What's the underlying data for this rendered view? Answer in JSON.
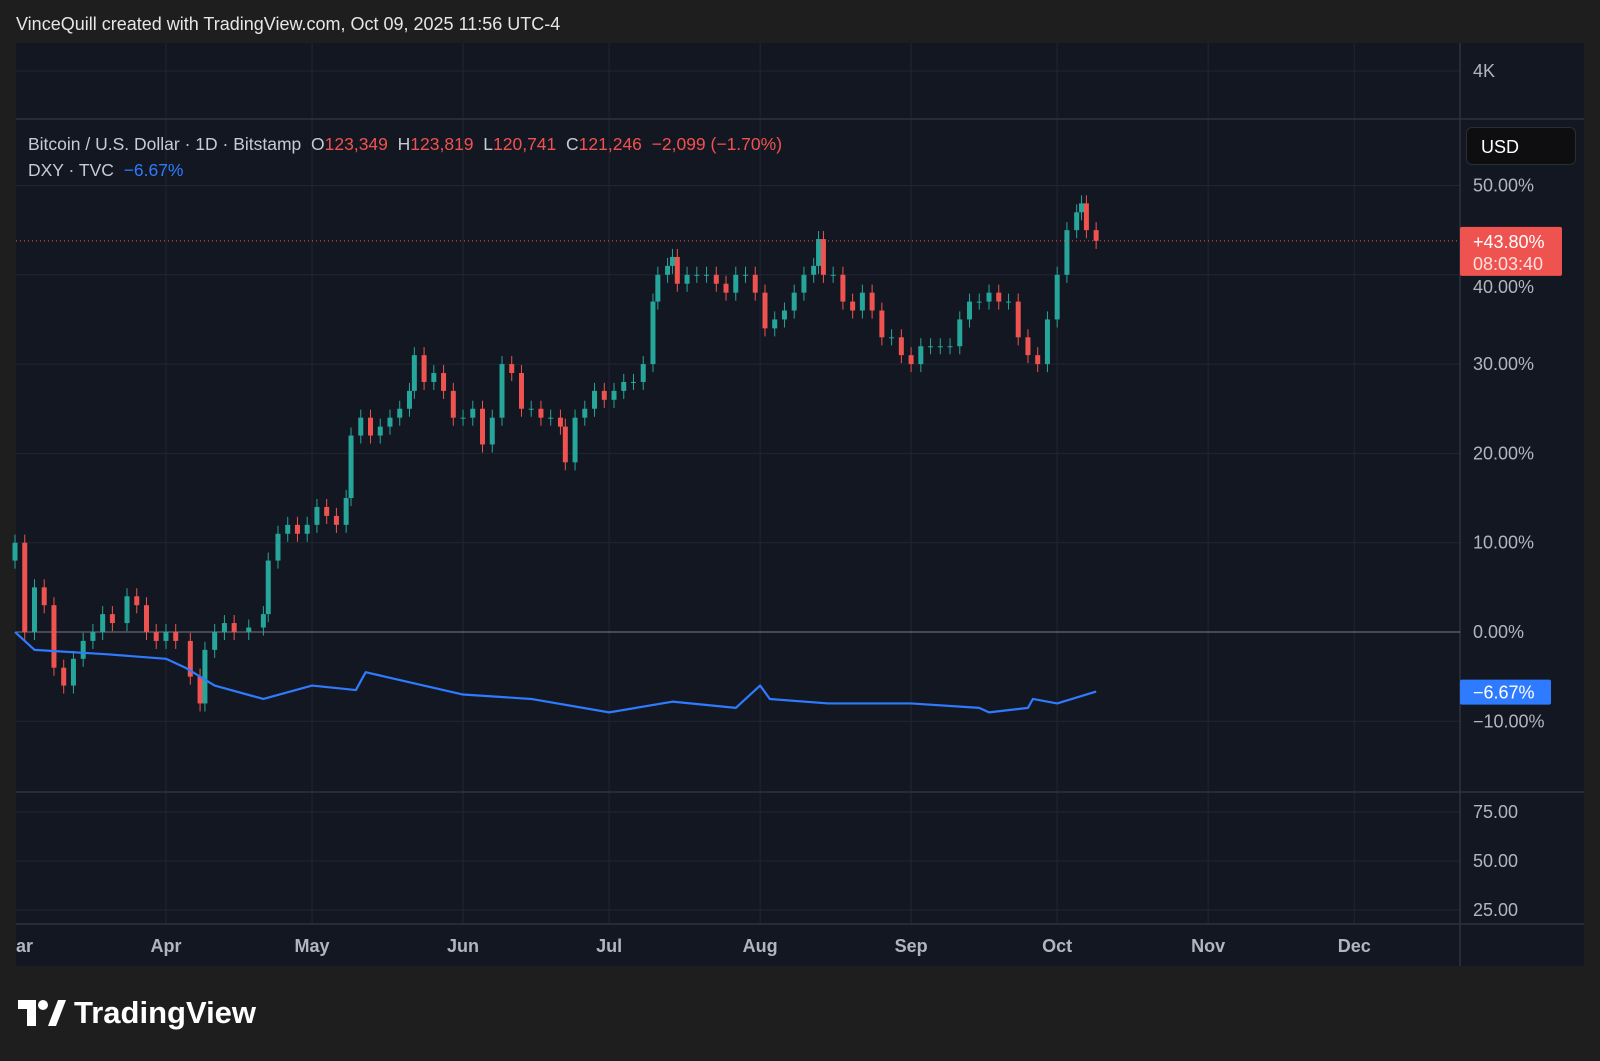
{
  "header": {
    "attribution": "VinceQuill created with TradingView.com, Oct 09, 2025 11:56 UTC-4"
  },
  "legend": {
    "symbol": "Bitcoin / U.S. Dollar · 1D · Bitstamp",
    "o_label": "O",
    "o": "123,349",
    "h_label": "H",
    "h": "123,819",
    "l_label": "L",
    "l": "120,741",
    "c_label": "C",
    "c": "121,246",
    "change": "−2,099 (−1.70%)",
    "compare_symbol": "DXY · TVC",
    "compare_change": "−6.67%"
  },
  "currency_button": "USD",
  "footer": {
    "brand": "TradingView"
  },
  "colors": {
    "up": "#26a69a",
    "down": "#ef5350",
    "dxy": "#2f7bff",
    "background": "#131722"
  },
  "chart_data": {
    "type": "candlestick+line",
    "y_scale": "percent",
    "top_pane_label": "4K",
    "y_ticks": [
      "50.00%",
      "40.00%",
      "30.00%",
      "20.00%",
      "10.00%",
      "0.00%",
      "−10.00%"
    ],
    "y_tick_values": [
      50,
      40,
      30,
      20,
      10,
      0,
      -10
    ],
    "lower_pane_ticks": [
      "75.00",
      "50.00",
      "25.00"
    ],
    "x_ticks": [
      "ar",
      "Apr",
      "May",
      "Jun",
      "Jul",
      "Aug",
      "Sep",
      "Oct",
      "Nov",
      "Dec"
    ],
    "x_tick_dates": [
      "2025-03-01",
      "2025-04-01",
      "2025-05-01",
      "2025-06-01",
      "2025-07-01",
      "2025-08-01",
      "2025-09-01",
      "2025-10-01",
      "2025-11-01",
      "2025-12-01"
    ],
    "last_price_label": "+43.80%",
    "countdown": "08:03:40",
    "dxy_label": "−6.67%",
    "btc": {
      "name": "Bitcoin / U.S. Dollar",
      "dates": [
        "2025-03-01",
        "2025-03-03",
        "2025-03-05",
        "2025-03-07",
        "2025-03-09",
        "2025-03-11",
        "2025-03-13",
        "2025-03-15",
        "2025-03-17",
        "2025-03-19",
        "2025-03-21",
        "2025-03-24",
        "2025-03-26",
        "2025-03-28",
        "2025-03-30",
        "2025-04-01",
        "2025-04-03",
        "2025-04-06",
        "2025-04-08",
        "2025-04-09",
        "2025-04-11",
        "2025-04-13",
        "2025-04-15",
        "2025-04-18",
        "2025-04-21",
        "2025-04-22",
        "2025-04-24",
        "2025-04-26",
        "2025-04-28",
        "2025-04-30",
        "2025-05-02",
        "2025-05-04",
        "2025-05-06",
        "2025-05-08",
        "2025-05-09",
        "2025-05-11",
        "2025-05-13",
        "2025-05-15",
        "2025-05-17",
        "2025-05-19",
        "2025-05-21",
        "2025-05-22",
        "2025-05-24",
        "2025-05-26",
        "2025-05-28",
        "2025-05-30",
        "2025-06-01",
        "2025-06-03",
        "2025-06-05",
        "2025-06-07",
        "2025-06-09",
        "2025-06-11",
        "2025-06-13",
        "2025-06-15",
        "2025-06-17",
        "2025-06-19",
        "2025-06-21",
        "2025-06-22",
        "2025-06-24",
        "2025-06-26",
        "2025-06-28",
        "2025-06-30",
        "2025-07-02",
        "2025-07-04",
        "2025-07-06",
        "2025-07-08",
        "2025-07-10",
        "2025-07-11",
        "2025-07-13",
        "2025-07-14",
        "2025-07-15",
        "2025-07-17",
        "2025-07-19",
        "2025-07-21",
        "2025-07-23",
        "2025-07-25",
        "2025-07-27",
        "2025-07-29",
        "2025-07-31",
        "2025-08-02",
        "2025-08-04",
        "2025-08-06",
        "2025-08-08",
        "2025-08-10",
        "2025-08-12",
        "2025-08-13",
        "2025-08-14",
        "2025-08-16",
        "2025-08-18",
        "2025-08-20",
        "2025-08-22",
        "2025-08-24",
        "2025-08-26",
        "2025-08-28",
        "2025-08-30",
        "2025-09-01",
        "2025-09-03",
        "2025-09-05",
        "2025-09-07",
        "2025-09-09",
        "2025-09-11",
        "2025-09-13",
        "2025-09-15",
        "2025-09-17",
        "2025-09-19",
        "2025-09-21",
        "2025-09-23",
        "2025-09-25",
        "2025-09-27",
        "2025-09-29",
        "2025-10-01",
        "2025-10-03",
        "2025-10-05",
        "2025-10-06",
        "2025-10-07",
        "2025-10-09"
      ],
      "close_pct": [
        10,
        0,
        5,
        3,
        -4,
        -6,
        -3,
        -1,
        0,
        2,
        1,
        4,
        3,
        0,
        -1,
        0,
        -1,
        -5,
        -8,
        -2,
        0,
        1,
        0,
        0.5,
        2,
        8,
        11,
        12,
        11,
        12,
        14,
        13,
        12,
        15,
        22,
        24,
        22,
        23,
        24,
        25,
        27,
        31,
        28,
        29,
        27,
        24,
        24,
        25,
        21,
        24,
        30,
        29,
        25,
        25,
        24,
        24,
        23,
        19,
        24,
        25,
        27,
        26,
        27,
        28,
        28,
        30,
        37,
        40,
        41,
        42,
        39,
        40,
        40,
        40,
        39,
        38,
        40,
        40,
        38,
        34,
        35,
        36,
        38,
        40,
        41,
        44,
        40,
        40,
        37,
        36,
        38,
        36,
        33,
        33,
        31,
        30,
        32,
        32,
        32,
        32,
        35,
        37,
        37,
        38,
        37,
        37,
        33,
        31,
        30,
        35,
        40,
        45,
        47,
        48,
        45,
        43.8
      ]
    },
    "dxy": {
      "name": "DXY · TVC",
      "dates": [
        "2025-03-01",
        "2025-03-05",
        "2025-03-20",
        "2025-04-01",
        "2025-04-05",
        "2025-04-11",
        "2025-04-21",
        "2025-05-01",
        "2025-05-10",
        "2025-05-12",
        "2025-06-01",
        "2025-06-15",
        "2025-07-01",
        "2025-07-14",
        "2025-07-27",
        "2025-08-01",
        "2025-08-03",
        "2025-08-15",
        "2025-09-01",
        "2025-09-15",
        "2025-09-17",
        "2025-09-25",
        "2025-09-26",
        "2025-10-01",
        "2025-10-09"
      ],
      "change_pct": [
        0,
        -2,
        -2.5,
        -3,
        -4,
        -6,
        -7.5,
        -6,
        -6.5,
        -4.5,
        -7,
        -7.5,
        -9,
        -7.8,
        -8.5,
        -6,
        -7.5,
        -8,
        -8,
        -8.5,
        -9,
        -8.5,
        -7.5,
        -8,
        -6.67
      ]
    }
  }
}
